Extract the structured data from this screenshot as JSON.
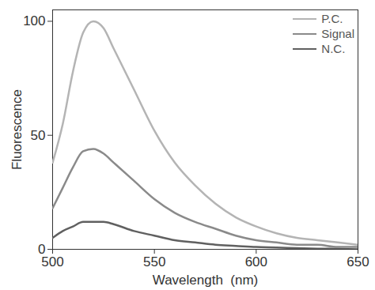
{
  "chart_data": {
    "type": "line",
    "x_label": "Wavelength  (nm)",
    "y_label": "Fluorescence",
    "x": [
      500,
      505,
      510,
      515,
      520,
      525,
      530,
      540,
      550,
      560,
      570,
      580,
      590,
      600,
      610,
      620,
      630,
      640,
      650
    ],
    "series": [
      {
        "name": "P.C.",
        "color": "#b4b4b4",
        "values": [
          38,
          55,
          78,
          95,
          100,
          97,
          88,
          70,
          52,
          38,
          28,
          20,
          14,
          10,
          7,
          5,
          4,
          3,
          2
        ]
      },
      {
        "name": "Signal",
        "color": "#8a8a8a",
        "values": [
          18,
          27,
          36,
          43,
          44,
          42,
          38,
          30,
          22,
          16,
          12,
          9,
          6,
          4,
          3,
          2,
          2,
          1,
          1
        ]
      },
      {
        "name": "N.C.",
        "color": "#606060",
        "values": [
          5,
          8,
          10,
          12,
          12,
          12,
          11,
          8,
          6,
          4,
          3,
          2,
          1.5,
          1,
          0.8,
          0.5,
          0.3,
          0.2,
          0
        ]
      }
    ],
    "xlim": [
      500,
      650
    ],
    "xticks": [
      500,
      550,
      600,
      650
    ],
    "ylim": [
      0,
      105
    ],
    "yticks": [
      0,
      50,
      100
    ],
    "legend": "top-right",
    "grid": false
  }
}
